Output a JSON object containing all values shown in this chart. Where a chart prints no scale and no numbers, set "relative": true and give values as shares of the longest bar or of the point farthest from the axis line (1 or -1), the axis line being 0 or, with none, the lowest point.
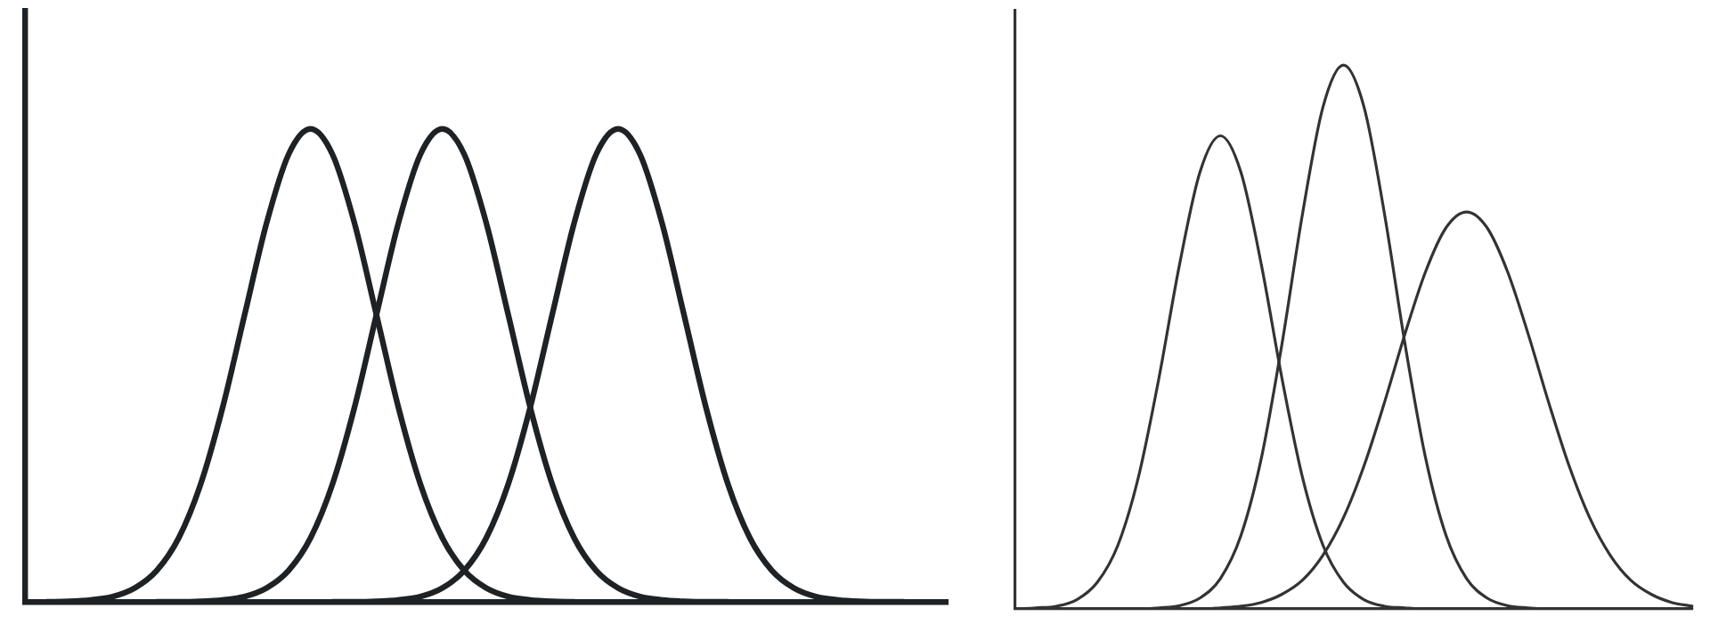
{
  "chart_data": [
    {
      "type": "line",
      "relative": true,
      "grid": false,
      "marker": "none",
      "tick_labels": false,
      "categories": [
        null,
        null,
        null,
        null,
        null,
        null,
        null,
        null,
        null,
        null,
        null,
        null,
        null,
        null,
        null,
        null,
        null,
        null,
        null,
        null,
        null,
        null,
        null,
        null,
        null,
        null,
        null,
        null,
        null,
        null,
        null,
        null,
        null,
        null,
        null,
        null,
        null,
        null,
        null,
        null,
        null,
        null,
        null
      ],
      "series": [
        {
          "color": "#1e2224",
          "values": [
            null,
            0,
            0.001,
            0.004,
            0.011,
            0.029,
            0.066,
            0.135,
            0.249,
            0.411,
            0.607,
            0.801,
            0.946,
            1,
            0.946,
            0.801,
            0.607,
            0.411,
            0.249,
            0.135,
            0.066,
            0.029,
            0.011,
            0.004,
            0.001,
            0,
            null,
            null,
            null,
            null,
            null,
            null,
            null,
            null,
            null,
            null,
            null,
            null,
            null,
            null,
            null,
            null,
            null
          ]
        },
        {
          "color": "#1e2224",
          "values": [
            null,
            null,
            null,
            null,
            null,
            null,
            0,
            0,
            0.001,
            0.004,
            0.011,
            0.029,
            0.066,
            0.135,
            0.249,
            0.411,
            0.607,
            0.801,
            0.946,
            1,
            0.946,
            0.801,
            0.607,
            0.411,
            0.249,
            0.135,
            0.066,
            0.029,
            0.011,
            0.004,
            0.001,
            0,
            0,
            null,
            null,
            null,
            null,
            null,
            null,
            null,
            null,
            null,
            null
          ]
        },
        {
          "color": "#1e2224",
          "values": [
            null,
            null,
            null,
            null,
            null,
            null,
            null,
            null,
            null,
            null,
            null,
            null,
            null,
            null,
            0,
            0,
            0.001,
            0.004,
            0.011,
            0.029,
            0.066,
            0.135,
            0.249,
            0.411,
            0.607,
            0.801,
            0.946,
            1,
            0.946,
            0.801,
            0.607,
            0.411,
            0.249,
            0.135,
            0.066,
            0.029,
            0.011,
            0.004,
            0.001,
            0,
            0,
            null,
            null
          ]
        }
      ]
    },
    {
      "type": "line",
      "relative": true,
      "grid": false,
      "marker": "none",
      "tick_labels": false,
      "categories": [
        null,
        null,
        null,
        null,
        null,
        null,
        null,
        null,
        null,
        null,
        null,
        null,
        null,
        null,
        null,
        null,
        null,
        null,
        null,
        null,
        null,
        null,
        null,
        null,
        null,
        null,
        null,
        null,
        null,
        null,
        null,
        null,
        null,
        null
      ],
      "series": [
        {
          "color": "#333333",
          "values": [
            0,
            0.002,
            0.005,
            0.017,
            0.049,
            0.117,
            0.242,
            0.424,
            0.632,
            0.803,
            0.87,
            0.803,
            0.632,
            0.424,
            0.242,
            0.117,
            0.049,
            0.017,
            0.005,
            0.002,
            0,
            0,
            0,
            0,
            0,
            0,
            0,
            0,
            0,
            0,
            0,
            0,
            0,
            0
          ]
        },
        {
          "color": "#333333",
          "values": [
            0,
            0,
            0,
            0,
            0,
            0,
            0,
            0.002,
            0.006,
            0.02,
            0.056,
            0.135,
            0.278,
            0.487,
            0.726,
            0.923,
            1,
            0.923,
            0.726,
            0.487,
            0.278,
            0.135,
            0.056,
            0.02,
            0.006,
            0.002,
            0,
            0,
            0,
            0,
            0,
            0,
            0,
            0
          ]
        },
        {
          "color": "#333333",
          "values": [
            0,
            0,
            0,
            0,
            0,
            0,
            0,
            0,
            0,
            0,
            0.002,
            0.005,
            0.012,
            0.027,
            0.053,
            0.099,
            0.168,
            0.263,
            0.38,
            0.506,
            0.62,
            0.701,
            0.73,
            0.701,
            0.62,
            0.506,
            0.38,
            0.263,
            0.168,
            0.099,
            0.053,
            0.027,
            0.012,
            0.005
          ]
        }
      ]
    }
  ]
}
